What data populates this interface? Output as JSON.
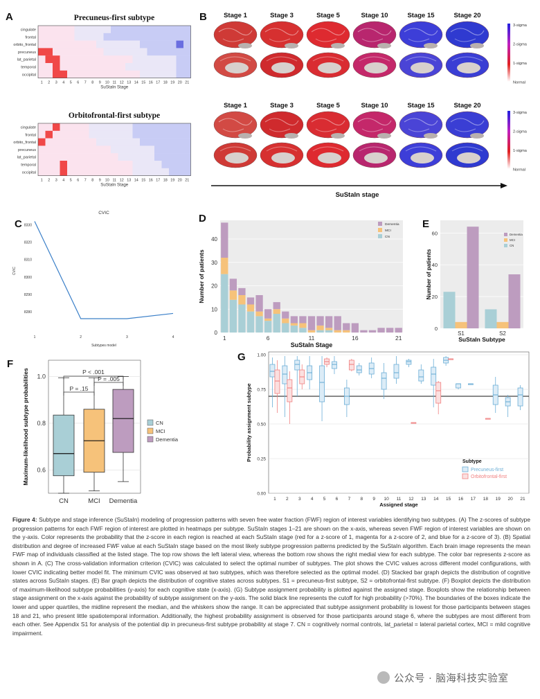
{
  "panels": {
    "A": {
      "letter": "A",
      "subtype1": {
        "title": "Precuneus-first subtype",
        "regions": [
          "cingulate",
          "frontal",
          "orbito_frontal",
          "precuneus",
          "lat_parietal",
          "temporal",
          "occipital"
        ],
        "stages": [
          "1",
          "2",
          "3",
          "4",
          "5",
          "6",
          "7",
          "8",
          "9",
          "10",
          "11",
          "12",
          "13",
          "14",
          "15",
          "16",
          "17",
          "18",
          "19",
          "20",
          "21"
        ],
        "xlabel": "SuStaIn Stage",
        "rows": [
          "PPPPPAAAAABBBBBBBBBBB",
          "PPPPPAAAABBBBBBBBBBBB",
          "PPPPPPPPAAAAAABBBBBDB",
          "RRPPPPPPPAAAAAABBBBBB",
          "PRRPPPPPPPPPPAAAAAABB",
          "PPRPPPPPPPPPAAAAAAABB",
          "PPRRPPPPPPPPPPAAAAABB"
        ]
      },
      "subtype2": {
        "title": "Orbitofrontal-first subtype",
        "regions": [
          "cingulate",
          "frontal",
          "orbito_frontal",
          "precuneus",
          "lat_parietal",
          "temporal",
          "occipital"
        ],
        "stages": [
          "1",
          "2",
          "3",
          "4",
          "5",
          "6",
          "7",
          "8",
          "9",
          "10",
          "11",
          "12",
          "13",
          "14",
          "15",
          "16",
          "17",
          "18",
          "19",
          "20",
          "21"
        ],
        "xlabel": "SuStaIn Stage",
        "rows": [
          "PPRPPPPAAAAAABBBBBBBB",
          "PRPPPPPAAAAAABBBBBBBB",
          "RPPPPPPPAAAAAABBBBBBB",
          "PPPPPPPPPPAAAAAABBBBB",
          "PPPPPPPPPPPAAAAABBBBB",
          "PPPRPPPPPPPPPAAAABBBB",
          "PPPRPPPPPPPPPAAAAABBB"
        ]
      }
    },
    "B": {
      "letter": "B",
      "stage_labels": [
        "Stage 1",
        "Stage 3",
        "Stage 5",
        "Stage 10",
        "Stage 15",
        "Stage 20"
      ],
      "colorbar_labels": [
        "3-sigma",
        "2-sigma",
        "1-sigma",
        "Normal"
      ],
      "axis_label": "SuStaIn stage",
      "row1_colors": [
        "#cf3a36",
        "#d63030",
        "#de2a30",
        "#b8266e",
        "#3d3ed8",
        "#2f3ad0"
      ],
      "row2_colors": [
        "#d24a44",
        "#cf2a2d",
        "#d92c32",
        "#c4286a",
        "#4a44d6",
        "#3a3ed4"
      ]
    },
    "C": {
      "letter": "C",
      "chart_data": {
        "type": "line",
        "title": "CVIC",
        "xlabel": "Subtypes model",
        "ylabel": "CVIC",
        "x": [
          1,
          2,
          3,
          4
        ],
        "y": [
          8332,
          8276,
          8276,
          8279
        ],
        "xticks": [
          "1",
          "2",
          "3",
          "4"
        ],
        "yticks": [
          "8280",
          "8290",
          "8300",
          "8310",
          "8320",
          "8330"
        ],
        "ylim": [
          8272,
          8335
        ]
      }
    },
    "D": {
      "letter": "D",
      "chart_data": {
        "type": "bar",
        "stacked": true,
        "xlabel": "SuStaIn Stage",
        "ylabel": "Number of patients",
        "categories": [
          "1",
          "2",
          "3",
          "4",
          "5",
          "6",
          "7",
          "8",
          "9",
          "10",
          "11",
          "12",
          "13",
          "14",
          "15",
          "16",
          "17",
          "18",
          "19",
          "20",
          "21"
        ],
        "xticks": [
          "1",
          "6",
          "11",
          "16",
          "21"
        ],
        "yticks": [
          "0",
          "10",
          "20",
          "30",
          "40"
        ],
        "ylim": [
          0,
          48
        ],
        "legend": "top-right",
        "series": [
          {
            "name": "CN",
            "color": "#a9cfd6",
            "values": [
              25,
              14,
              12,
              9,
              7,
              5,
              8,
              4,
              3,
              2,
              0,
              1,
              1,
              0,
              0,
              0,
              0,
              0,
              0,
              0,
              0
            ]
          },
          {
            "name": "MCI",
            "color": "#f6c27a",
            "values": [
              7,
              4,
              4,
              3,
              2,
              1,
              2,
              2,
              1,
              2,
              1,
              2,
              1,
              1,
              1,
              0,
              0,
              0,
              0,
              0,
              0
            ]
          },
          {
            "name": "Dementia",
            "color": "#bd9cbf",
            "values": [
              15,
              5,
              3,
              3,
              7,
              4,
              3,
              3,
              3,
              3,
              6,
              4,
              5,
              6,
              3,
              4,
              1,
              1,
              2,
              2,
              2
            ]
          }
        ]
      }
    },
    "E": {
      "letter": "E",
      "chart_data": {
        "type": "bar",
        "xlabel": "SuStaIn Subtype",
        "ylabel": "Number of patients",
        "categories": [
          "S1",
          "S2"
        ],
        "yticks": [
          "0",
          "20",
          "40",
          "60"
        ],
        "ylim": [
          0,
          68
        ],
        "legend": "top-right",
        "series": [
          {
            "name": "CN",
            "color": "#a9cfd6",
            "values": [
              23,
              12
            ]
          },
          {
            "name": "MCI",
            "color": "#f6c27a",
            "values": [
              4,
              4
            ]
          },
          {
            "name": "Dementia",
            "color": "#bd9cbf",
            "values": [
              64,
              34
            ]
          }
        ]
      }
    },
    "F": {
      "letter": "F",
      "chart_data": {
        "type": "box",
        "ylabel": "Maximum-likelihood subtype probabilities",
        "categories": [
          "CN",
          "MCI",
          "Dementia"
        ],
        "yticks": [
          "0.6",
          "0.8",
          "1.0"
        ],
        "ylim": [
          0.5,
          1.07
        ],
        "legend_title": "",
        "legend": "right",
        "boxes": [
          {
            "name": "CN",
            "color": "#a9cfd6",
            "min": 0.5,
            "q1": 0.575,
            "median": 0.67,
            "q3": 0.835,
            "max": 0.995
          },
          {
            "name": "MCI",
            "color": "#f6c27a",
            "min": 0.51,
            "q1": 0.59,
            "median": 0.725,
            "q3": 0.86,
            "max": 0.995
          },
          {
            "name": "Dementia",
            "color": "#bd9cbf",
            "min": 0.55,
            "q1": 0.675,
            "median": 0.82,
            "q3": 0.945,
            "max": 1.0
          }
        ],
        "annotations": [
          "P < .001",
          "P = .15",
          "P = .005"
        ]
      }
    },
    "G": {
      "letter": "G",
      "chart_data": {
        "type": "box",
        "xlabel": "Assigned stage",
        "ylabel": "Probability assignment subtype",
        "categories": [
          "1",
          "2",
          "3",
          "4",
          "5",
          "6",
          "7",
          "8",
          "9",
          "10",
          "11",
          "12",
          "13",
          "14",
          "15",
          "16",
          "17",
          "18",
          "19",
          "20",
          "21"
        ],
        "yticks": [
          "0.00",
          "0.25",
          "0.50",
          "0.75",
          "1.00"
        ],
        "ylim": [
          0,
          1.02
        ],
        "cutoff": 0.7,
        "legend_title": "Subtype",
        "legend": "bottom-right",
        "series": [
          {
            "name": "Precuneus-first",
            "color": "#6baed6",
            "boxes": [
              [
                1,
                0.62,
                0.84,
                0.88,
                0.93,
                0.98
              ],
              [
                2,
                0.55,
                0.79,
                0.86,
                0.92,
                0.99
              ],
              [
                3,
                0.7,
                0.89,
                0.93,
                0.96,
                0.99
              ],
              [
                4,
                0.75,
                0.82,
                0.87,
                0.92,
                0.99
              ],
              [
                5,
                0.52,
                0.66,
                0.8,
                0.92,
                0.99
              ],
              [
                6,
                0.86,
                0.9,
                0.93,
                0.95,
                0.99
              ],
              [
                7,
                0.55,
                0.64,
                0.7,
                0.76,
                0.82
              ],
              [
                8,
                0.85,
                0.87,
                0.89,
                0.92,
                0.94
              ],
              [
                9,
                0.83,
                0.86,
                0.9,
                0.94,
                0.98
              ],
              [
                10,
                0.68,
                0.75,
                0.83,
                0.87,
                0.94
              ],
              [
                11,
                0.79,
                0.83,
                0.87,
                0.93,
                0.99
              ],
              [
                12,
                0.91,
                0.93,
                0.95,
                0.96,
                0.97
              ],
              [
                13,
                0.79,
                0.81,
                0.84,
                0.89,
                0.93
              ],
              [
                14,
                0.62,
                0.78,
                0.86,
                0.91,
                0.97
              ],
              [
                15,
                0.92,
                0.94,
                0.96,
                0.98,
                0.99
              ],
              [
                16,
                0.75,
                0.76,
                0.79,
                0.79,
                0.79
              ],
              [
                17,
                0.79,
                0.79,
                0.79,
                0.79,
                0.79
              ],
              [
                19,
                0.58,
                0.64,
                0.71,
                0.78,
                0.84
              ],
              [
                20,
                0.55,
                0.63,
                0.66,
                0.69,
                0.71
              ],
              [
                21,
                0.6,
                0.63,
                0.71,
                0.76,
                0.78
              ]
            ]
          },
          {
            "name": "Orbitofrontal-first",
            "color": "#f08080",
            "boxes": [
              [
                1,
                0.58,
                0.72,
                0.81,
                0.89,
                0.96
              ],
              [
                2,
                0.5,
                0.66,
                0.76,
                0.82,
                0.88
              ],
              [
                3,
                0.75,
                0.79,
                0.84,
                0.89,
                0.93
              ],
              [
                5,
                0.91,
                0.93,
                0.95,
                0.97,
                0.98
              ],
              [
                7,
                0.88,
                0.89,
                0.93,
                0.96,
                0.97
              ],
              [
                12,
                0.51,
                0.51,
                0.51,
                0.51,
                0.51
              ],
              [
                14,
                0.57,
                0.65,
                0.74,
                0.8,
                0.81
              ],
              [
                15,
                0.97,
                0.97,
                0.97,
                0.97,
                0.97
              ],
              [
                18,
                0.54,
                0.54,
                0.54,
                0.54,
                0.54
              ]
            ]
          }
        ]
      }
    }
  },
  "caption": {
    "figure_label": "Figure 4:",
    "text": "Subtype and stage inference (SuStaIn) modeling of progression patterns with seven free water fraction (FWF) region of interest variables identifying two subtypes. (A) The z-scores of subtype progression patterns for each FWF region of interest are plotted in heatmaps per subtype. SuStaIn stages 1–21 are shown on the x-axis, whereas seven FWF region of interest variables are shown on the y-axis. Color represents the probability that the z-score in each region is reached at each SuStaIn stage (red for a z-score of 1, magenta for a z-score of 2, and blue for a z-score of 3). (B) Spatial distribution and degree of increased FWF value at each SuStaIn stage based on the most likely subtype progression patterns predicted by the SuStaIn algorithm. Each brain image represents the mean FWF map of individuals classified at the listed stage. The top row shows the left lateral view, whereas the bottom row shows the right medial view for each subtype. The color bar represents z-score as shown in A. (C) The cross-validation information criterion (CVIC) was calculated to select the optimal number of subtypes. The plot shows the CVIC values across different model configurations, with lower CVIC indicating better model fit. The minimum CVIC was observed at two subtypes, which was therefore selected as the optimal model. (D) Stacked bar graph depicts the distribution of cognitive states across SuStaIn stages. (E) Bar graph depicts the distribution of cognitive states across subtypes. S1 = precuneus-first subtype, S2 = orbitofrontal-first subtype. (F) Boxplot depicts the distribution of maximum-likelihood subtype probabilities (y-axis) for each cognitive state (x-axis). (G) Subtype assignment probability is plotted against the assigned stage. Boxplots show the relationship between stage assignment on the x-axis against the probability of subtype assignment on the y-axis. The solid black line represents the cutoff for high probability (>70%). The boundaries of the boxes indicate the lower and upper quartiles, the midline represent the median, and the whiskers show the range. It can be appreciated that subtype assignment probability is lowest for those participants between stages 18 and 21, who present little spatiotemporal information. Additionally, the highest probability assignment is observed for those participants around stage 6, where the subtypes are most different from each other. See Appendix S1 for analysis of the potential dip in precuneus-first subtype probability at stage 7. CN = cognitively normal controls, lat_parietal = lateral parietal cortex, MCI = mild cognitive impairment."
  },
  "watermark": "公众号 · 脑海科技实验室"
}
